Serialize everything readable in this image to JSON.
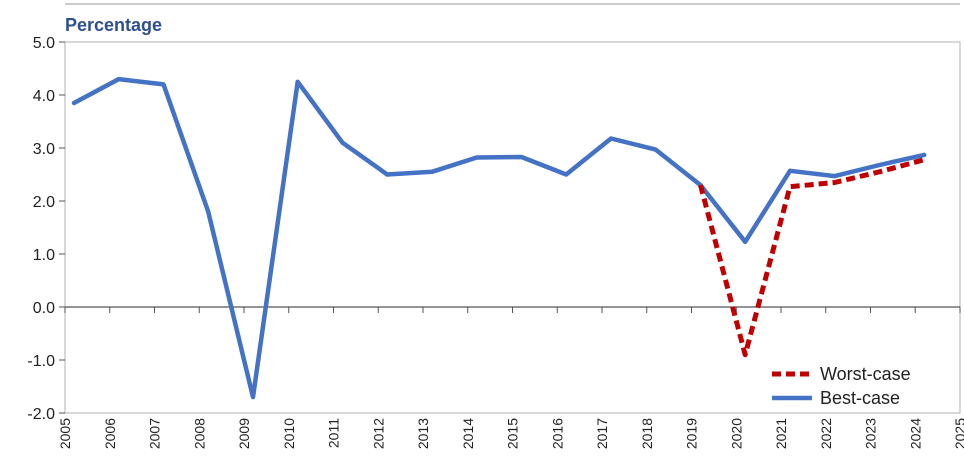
{
  "chart_data": {
    "type": "line",
    "title": "",
    "ylabel": "Percentage",
    "xlabel": "",
    "ylim": [
      -2.0,
      5.0
    ],
    "yticks": [
      "5.0",
      "4.0",
      "3.0",
      "2.0",
      "1.0",
      "0.0",
      "-1.0",
      "-2.0"
    ],
    "ytick_values": [
      5,
      4,
      3,
      2,
      1,
      0,
      -1,
      -2
    ],
    "xticks": [
      "2005",
      "2006",
      "2007",
      "2008",
      "2009",
      "2010",
      "2011",
      "2012",
      "2013",
      "2014",
      "2015",
      "2016",
      "2017",
      "2018",
      "2019",
      "2020",
      "2021",
      "2022",
      "2023",
      "2024",
      "2025"
    ],
    "grid": false,
    "legend_position": "bottom-right",
    "series": [
      {
        "name": "Best-case",
        "color": "#4472c4",
        "style": "solid",
        "x": [
          2005.2,
          2006.2,
          2007.2,
          2008.2,
          2009.2,
          2010.2,
          2011.2,
          2012.2,
          2013.2,
          2014.2,
          2015.2,
          2016.2,
          2017.2,
          2018.2,
          2019.2,
          2020.2,
          2021.2,
          2022.2,
          2023.2,
          2024.2
        ],
        "values": [
          3.85,
          4.3,
          4.2,
          1.8,
          -1.7,
          4.25,
          3.1,
          2.5,
          2.55,
          2.82,
          2.83,
          2.5,
          3.18,
          2.97,
          2.3,
          1.23,
          2.57,
          2.47,
          2.68,
          2.87
        ]
      },
      {
        "name": "Worst-case",
        "color": "#c00000",
        "style": "dashed",
        "x": [
          2019.2,
          2020.2,
          2021.2,
          2022.2,
          2023.2,
          2024.2
        ],
        "values": [
          2.3,
          -0.9,
          2.27,
          2.35,
          2.55,
          2.78
        ]
      }
    ]
  }
}
